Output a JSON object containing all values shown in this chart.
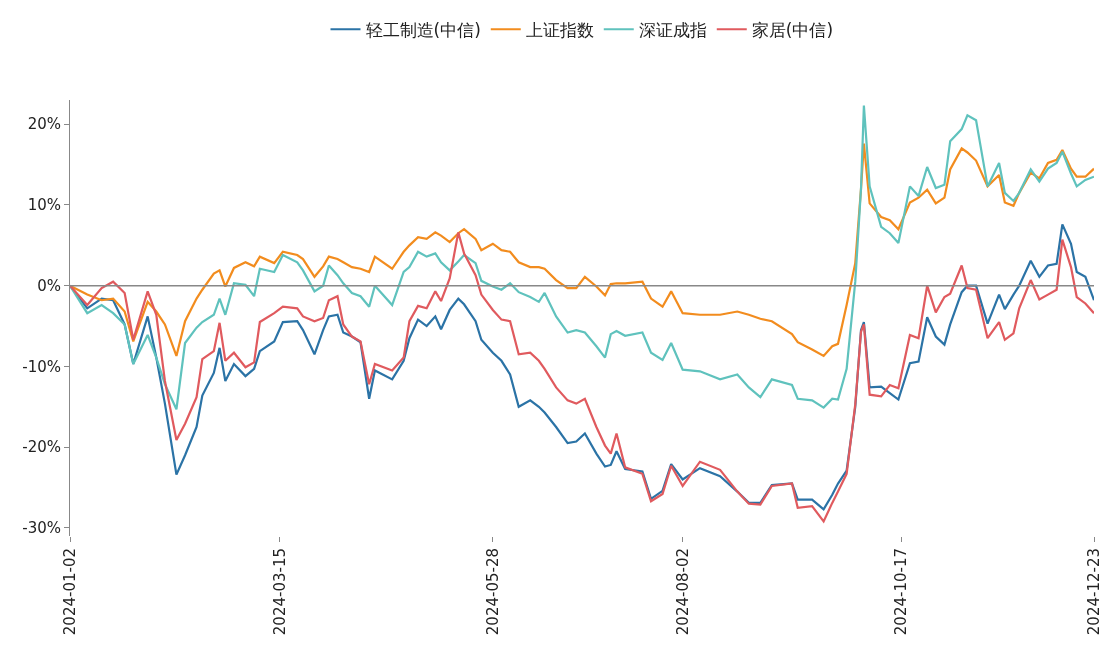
{
  "chart_data": {
    "type": "line",
    "legend": "top",
    "marker": "none",
    "ref_lines": [
      {
        "axis": "y",
        "value": 0,
        "color": "#888888"
      }
    ],
    "line_style": "solid",
    "x": [
      "2024-01-02",
      "2024-01-08",
      "2024-01-13",
      "2024-01-17",
      "2024-01-21",
      "2024-01-24",
      "2024-01-29",
      "2024-02-01",
      "2024-02-04",
      "2024-02-08",
      "2024-02-11",
      "2024-02-15",
      "2024-02-17",
      "2024-02-21",
      "2024-02-23",
      "2024-02-25",
      "2024-02-28",
      "2024-03-03",
      "2024-03-06",
      "2024-03-08",
      "2024-03-13",
      "2024-03-16",
      "2024-03-21",
      "2024-03-23",
      "2024-03-27",
      "2024-03-30",
      "2024-04-01",
      "2024-04-04",
      "2024-04-06",
      "2024-04-09",
      "2024-04-12",
      "2024-04-15",
      "2024-04-17",
      "2024-04-23",
      "2024-04-27",
      "2024-04-29",
      "2024-05-02",
      "2024-05-05",
      "2024-05-08",
      "2024-05-10",
      "2024-05-13",
      "2024-05-16",
      "2024-05-18",
      "2024-05-22",
      "2024-05-24",
      "2024-05-28",
      "2024-05-31",
      "2024-06-03",
      "2024-06-06",
      "2024-06-10",
      "2024-06-13",
      "2024-06-15",
      "2024-06-19",
      "2024-06-23",
      "2024-06-26",
      "2024-06-29",
      "2024-07-03",
      "2024-07-06",
      "2024-07-08",
      "2024-07-10",
      "2024-07-13",
      "2024-07-19",
      "2024-07-22",
      "2024-07-26",
      "2024-07-29",
      "2024-08-02",
      "2024-08-08",
      "2024-08-15",
      "2024-08-21",
      "2024-08-25",
      "2024-08-29",
      "2024-09-02",
      "2024-09-09",
      "2024-09-11",
      "2024-09-16",
      "2024-09-20",
      "2024-09-23",
      "2024-09-25",
      "2024-09-28",
      "2024-10-01",
      "2024-10-03",
      "2024-10-04",
      "2024-10-06",
      "2024-10-10",
      "2024-10-13",
      "2024-10-16",
      "2024-10-20",
      "2024-10-23",
      "2024-10-26",
      "2024-10-29",
      "2024-11-01",
      "2024-11-03",
      "2024-11-07",
      "2024-11-09",
      "2024-11-12",
      "2024-11-16",
      "2024-11-20",
      "2024-11-22",
      "2024-11-25",
      "2024-11-27",
      "2024-12-01",
      "2024-12-04",
      "2024-12-07",
      "2024-12-10",
      "2024-12-12",
      "2024-12-15",
      "2024-12-17",
      "2024-12-20",
      "2024-12-23"
    ],
    "xlim": [
      "2024-01-02",
      "2024-12-23"
    ],
    "xticks": [
      "2024-01-02",
      "2024-03-15",
      "2024-05-28",
      "2024-08-02",
      "2024-10-17",
      "2024-12-23"
    ],
    "ylim": [
      -31,
      23
    ],
    "yticks": [
      {
        "value": -30,
        "label": "-30%"
      },
      {
        "value": -20,
        "label": "-20%"
      },
      {
        "value": -10,
        "label": "-10%"
      },
      {
        "value": 0,
        "label": "0%"
      },
      {
        "value": 10,
        "label": "10%"
      },
      {
        "value": 20,
        "label": "20%"
      }
    ],
    "series": [
      {
        "name": "轻工制造(中信)",
        "color": "#2b73a6",
        "values": [
          0,
          -2.8,
          -1.6,
          -1.8,
          -4.8,
          -9.7,
          -3.8,
          -8.9,
          -14.6,
          -23.4,
          -21,
          -17.5,
          -13.6,
          -10.8,
          -7.7,
          -11.8,
          -9.7,
          -11.2,
          -10.3,
          -8.1,
          -6.9,
          -4.5,
          -4.4,
          -5.5,
          -8.5,
          -5.5,
          -3.8,
          -3.6,
          -5.8,
          -6.3,
          -7,
          -14,
          -10.5,
          -11.6,
          -9.3,
          -6.5,
          -4.2,
          -5,
          -3.8,
          -5.4,
          -3,
          -1.6,
          -2.3,
          -4.4,
          -6.7,
          -8.3,
          -9.3,
          -11,
          -15,
          -14.2,
          -15,
          -15.7,
          -17.5,
          -19.5,
          -19.3,
          -18.3,
          -20.8,
          -22.4,
          -22.2,
          -20.5,
          -22.7,
          -23,
          -26.4,
          -25.4,
          -22.1,
          -24,
          -22.6,
          -23.6,
          -25.5,
          -26.9,
          -26.9,
          -24.7,
          -24.5,
          -26.5,
          -26.5,
          -27.7,
          -25.9,
          -24.5,
          -22.9,
          -15,
          -5.5,
          -4.5,
          -12.6,
          -12.5,
          -13.3,
          -14.1,
          -9.6,
          -9.4,
          -3.9,
          -6.3,
          -7.3,
          -4.8,
          -0.8,
          0,
          0,
          -4.7,
          -1.1,
          -2.9,
          -1.1,
          0,
          3.1,
          1.1,
          2.5,
          2.7,
          7.6,
          5.2,
          1.7,
          1.1,
          -1.8
        ]
      },
      {
        "name": "上证指数",
        "color": "#f28c1e",
        "values": [
          0,
          -1.1,
          -1.8,
          -1.6,
          -3.2,
          -6.9,
          -2,
          -3.2,
          -4.8,
          -8.7,
          -4.4,
          -1.6,
          -0.5,
          1.5,
          1.9,
          -0.1,
          2.2,
          2.9,
          2.4,
          3.6,
          2.8,
          4.2,
          3.8,
          3.3,
          1.1,
          2.4,
          3.6,
          3.3,
          2.9,
          2.3,
          2.1,
          1.7,
          3.6,
          2.1,
          4.2,
          5,
          6,
          5.8,
          6.6,
          6.2,
          5.4,
          6.5,
          7,
          5.8,
          4.4,
          5.2,
          4.4,
          4.2,
          2.9,
          2.3,
          2.3,
          2.1,
          0.7,
          -0.3,
          -0.3,
          1.1,
          -0.1,
          -1.2,
          0.2,
          0.3,
          0.3,
          0.5,
          -1.6,
          -2.6,
          -0.7,
          -3.4,
          -3.6,
          -3.6,
          -3.2,
          -3.6,
          -4.1,
          -4.4,
          -6,
          -7,
          -7.9,
          -8.7,
          -7.5,
          -7.2,
          -2.4,
          2.8,
          12,
          17.6,
          10.2,
          8.5,
          8.1,
          7,
          10.3,
          10.9,
          11.9,
          10.2,
          10.9,
          14.4,
          17,
          16.5,
          15.5,
          12.3,
          13.7,
          10.3,
          9.9,
          11.5,
          14,
          13.3,
          15.2,
          15.6,
          16.8,
          14.5,
          13.5,
          13.5,
          14.5
        ]
      },
      {
        "name": "深证成指",
        "color": "#5fc2bd",
        "values": [
          0,
          -3.4,
          -2.4,
          -3.4,
          -4.8,
          -9.7,
          -6.1,
          -8.9,
          -12.2,
          -15.3,
          -7.1,
          -5.2,
          -4.5,
          -3.6,
          -1.6,
          -3.6,
          0.3,
          0.1,
          -1.3,
          2.1,
          1.7,
          3.8,
          2.9,
          1.9,
          -0.7,
          0,
          2.5,
          1.3,
          0.3,
          -0.9,
          -1.3,
          -2.6,
          0,
          -2.4,
          1.7,
          2.3,
          4.2,
          3.6,
          4,
          2.9,
          1.9,
          3,
          3.8,
          2.8,
          0.6,
          -0.1,
          -0.5,
          0.3,
          -0.8,
          -1.4,
          -2,
          -0.9,
          -3.8,
          -5.8,
          -5.5,
          -5.8,
          -7.5,
          -8.9,
          -6,
          -5.6,
          -6.2,
          -5.8,
          -8.3,
          -9.2,
          -7.1,
          -10.4,
          -10.6,
          -11.6,
          -11,
          -12.6,
          -13.8,
          -11.6,
          -12.3,
          -14,
          -14.2,
          -15.1,
          -14,
          -14.1,
          -10.3,
          0.5,
          12,
          22.3,
          12.3,
          7.3,
          6.5,
          5.3,
          12.3,
          11.1,
          14.7,
          12.1,
          12.5,
          17.9,
          19.4,
          21.1,
          20.5,
          12.3,
          15.2,
          11.5,
          10.5,
          11.5,
          14.4,
          12.9,
          14.5,
          15.2,
          16.6,
          13.9,
          12.3,
          13.1,
          13.5
        ]
      },
      {
        "name": "家居(中信)",
        "color": "#e05a5e",
        "values": [
          0,
          -2.4,
          -0.3,
          0.5,
          -0.9,
          -6.7,
          -0.7,
          -3.6,
          -11.8,
          -19.1,
          -17.1,
          -13.8,
          -9.1,
          -8.1,
          -4.6,
          -9.3,
          -8.3,
          -10.1,
          -9.5,
          -4.5,
          -3.4,
          -2.6,
          -2.8,
          -3.8,
          -4.4,
          -4,
          -1.8,
          -1.3,
          -4.8,
          -6.3,
          -6.9,
          -12.2,
          -9.7,
          -10.5,
          -8.9,
          -4.4,
          -2.5,
          -2.8,
          -0.7,
          -1.9,
          0.9,
          6.6,
          4,
          1.3,
          -1.1,
          -3,
          -4.2,
          -4.4,
          -8.5,
          -8.3,
          -9.3,
          -10.3,
          -12.6,
          -14.2,
          -14.6,
          -14,
          -17.5,
          -19.8,
          -20.8,
          -18.3,
          -22.5,
          -23.3,
          -26.7,
          -25.8,
          -22.3,
          -24.8,
          -21.8,
          -22.8,
          -25.5,
          -27,
          -27.1,
          -24.8,
          -24.5,
          -27.5,
          -27.3,
          -29.2,
          -26.9,
          -25.5,
          -23.3,
          -14.7,
          -5.7,
          -4.8,
          -13.5,
          -13.7,
          -12.3,
          -12.7,
          -6.1,
          -6.5,
          0,
          -3.3,
          -1.4,
          -1,
          2.5,
          -0.3,
          -0.5,
          -6.5,
          -4.5,
          -6.7,
          -5.9,
          -2.8,
          0.7,
          -1.7,
          -1.1,
          -0.5,
          5.7,
          2.3,
          -1.4,
          -2.2,
          -3.4
        ]
      }
    ]
  }
}
